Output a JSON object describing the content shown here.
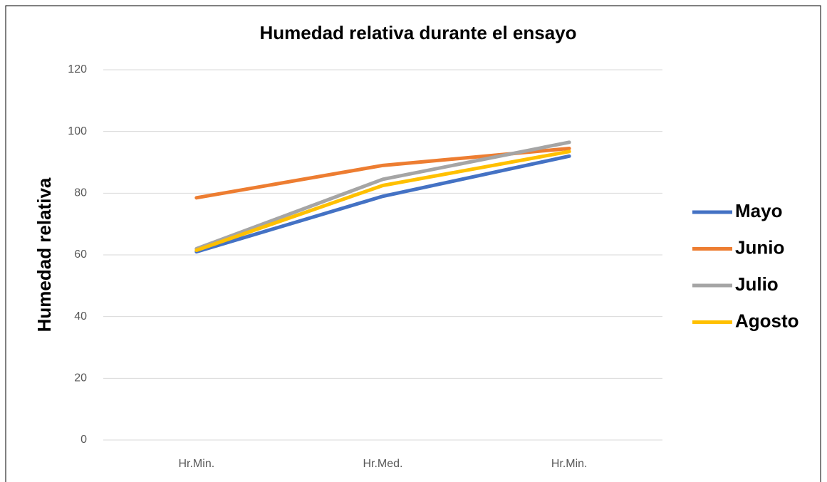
{
  "chart_data": {
    "type": "line",
    "title": "Humedad relativa durante el ensayo",
    "y_label": "Humedad relativa",
    "categories": [
      "Hr.Min.",
      "Hr.Med.",
      "Hr.Min."
    ],
    "series": [
      {
        "name": "Mayo",
        "color": "#4472c4",
        "values": [
          61,
          79,
          92
        ]
      },
      {
        "name": "Junio",
        "color": "#ed7d31",
        "values": [
          78.5,
          89,
          94.5
        ]
      },
      {
        "name": "Julio",
        "color": "#a5a5a5",
        "values": [
          62,
          84.5,
          96.5
        ]
      },
      {
        "name": "Agosto",
        "color": "#ffc000",
        "values": [
          61.5,
          82.5,
          93.5
        ]
      }
    ],
    "ylim": [
      0,
      120
    ],
    "yticks": [
      0,
      20,
      40,
      60,
      80,
      100,
      120
    ],
    "grid": true,
    "legend": "right"
  }
}
